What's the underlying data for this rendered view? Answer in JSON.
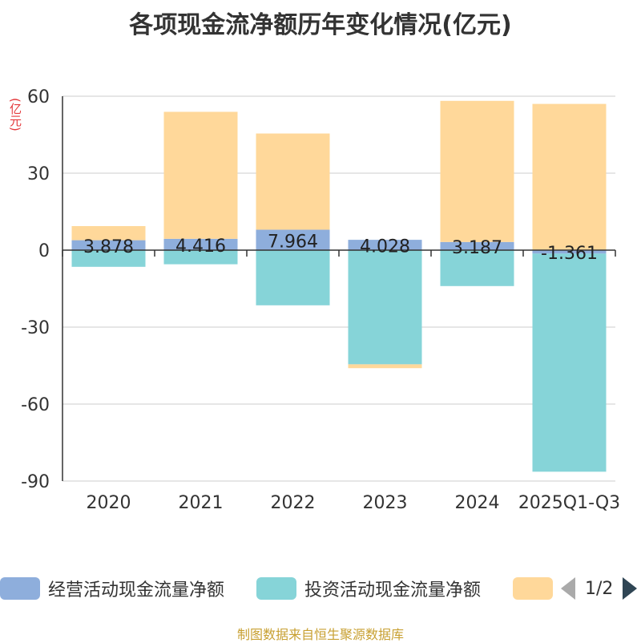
{
  "chart_data": {
    "type": "bar",
    "title": "各项现金流净额历年变化情况(亿元)",
    "ylabel": "(亿元)",
    "xlabel": "",
    "ylim": [
      -90,
      60
    ],
    "yticks": [
      60,
      30,
      0,
      -30,
      -60,
      -90
    ],
    "categories": [
      "2020",
      "2021",
      "2022",
      "2023",
      "2024",
      "2025Q1-Q3"
    ],
    "series": [
      {
        "name": "经营活动现金流量净额",
        "color": "#8eaedc",
        "values": [
          3.878,
          4.416,
          7.964,
          4.028,
          3.187,
          -1.361
        ],
        "labels": [
          "3.878",
          "4.416",
          "7.964",
          "4.028",
          "3.187",
          "-1.361"
        ]
      },
      {
        "name": "投资活动现金流量净额",
        "color": "#86d4d8",
        "values": [
          -6.5,
          -5.5,
          -21.5,
          -44.5,
          -14.0,
          -85.0
        ]
      },
      {
        "name": "",
        "color": "#ffd89a",
        "values": [
          5.5,
          49.5,
          37.5,
          -1.5,
          55.0,
          57.0
        ]
      }
    ],
    "stacked": true,
    "grid": true,
    "legend_position": "bottom"
  },
  "legend": {
    "items": [
      {
        "label": "经营活动现金流量净额",
        "color": "#8eaedc"
      },
      {
        "label": "投资活动现金流量净额",
        "color": "#86d4d8"
      },
      {
        "label": "",
        "color": "#ffd89a"
      }
    ],
    "page_indicator": "1/2"
  },
  "source": "制图数据来自恒生聚源数据库"
}
